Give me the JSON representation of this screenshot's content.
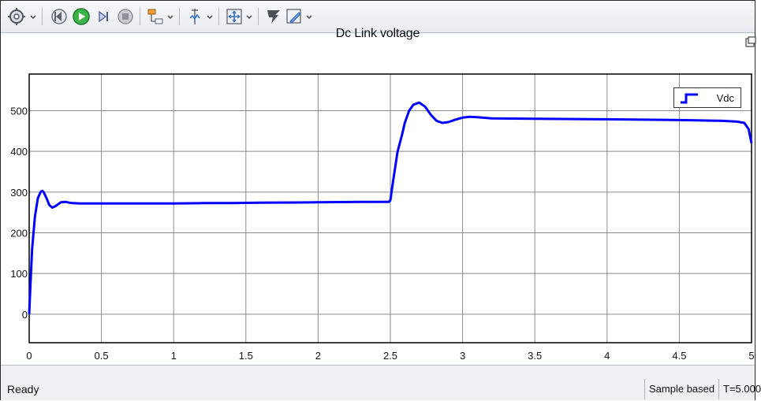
{
  "toolbar": {
    "buttons": [
      {
        "name": "settings-gear-icon",
        "arrow": true
      },
      {
        "name": "step-back-icon",
        "arrow": false
      },
      {
        "name": "run-icon",
        "arrow": false
      },
      {
        "name": "step-forward-icon",
        "arrow": false
      },
      {
        "name": "stop-icon",
        "arrow": false
      },
      {
        "name": "highlight-simulink-block-icon",
        "arrow": true
      },
      {
        "name": "cursor-measurements-icon",
        "arrow": true
      },
      {
        "name": "zoom-icon",
        "arrow": true
      },
      {
        "name": "autoscale-icon",
        "arrow": false
      },
      {
        "name": "edit-style-icon",
        "arrow": true
      }
    ]
  },
  "plot": {
    "title": "Dc Link voltage",
    "legend": {
      "label": "Vdc",
      "placement": "top-right"
    }
  },
  "colors": {
    "series": "#0000ff",
    "grid": "#8a8a8a",
    "axis": "#000000"
  },
  "chart_data": {
    "type": "line",
    "title": "Dc Link voltage",
    "xlabel": "",
    "ylabel": "",
    "xlim": [
      0,
      5
    ],
    "ylim": [
      -70,
      590
    ],
    "xticks": [
      0,
      0.5,
      1,
      1.5,
      2,
      2.5,
      3,
      3.5,
      4,
      4.5,
      5
    ],
    "xtick_labels": [
      "0",
      "0.5",
      "1",
      "1.5",
      "2",
      "2.5",
      "3",
      "3.5",
      "4",
      "4.5",
      "5"
    ],
    "yticks": [
      0,
      100,
      200,
      300,
      400,
      500
    ],
    "ytick_labels": [
      "0",
      "100",
      "200",
      "300",
      "400",
      "500"
    ],
    "grid": true,
    "legend_placement": "top-right",
    "series": [
      {
        "name": "Vdc",
        "x": [
          0,
          0.01,
          0.02,
          0.04,
          0.06,
          0.08,
          0.09,
          0.1,
          0.12,
          0.14,
          0.16,
          0.18,
          0.2,
          0.22,
          0.25,
          0.28,
          0.3,
          0.35,
          0.5,
          0.8,
          1.0,
          1.2,
          1.4,
          1.6,
          2.0,
          2.3,
          2.49,
          2.5,
          2.52,
          2.55,
          2.58,
          2.6,
          2.63,
          2.66,
          2.7,
          2.74,
          2.78,
          2.82,
          2.86,
          2.9,
          2.95,
          3.0,
          3.05,
          3.1,
          3.2,
          3.5,
          4.0,
          4.5,
          4.8,
          4.9,
          4.95,
          4.98,
          5.0
        ],
        "y": [
          0,
          80,
          160,
          240,
          285,
          301,
          303,
          300,
          285,
          268,
          262,
          265,
          270,
          275,
          276,
          274,
          273,
          272,
          272,
          272,
          272,
          273,
          273,
          274,
          275,
          276,
          276,
          280,
          330,
          400,
          440,
          470,
          500,
          515,
          520,
          510,
          490,
          475,
          470,
          472,
          478,
          483,
          485,
          484,
          481,
          480,
          479,
          477,
          475,
          473,
          470,
          455,
          420
        ]
      }
    ]
  },
  "status": {
    "ready": "Ready",
    "sample": "Sample based",
    "time": "T=5.000"
  }
}
